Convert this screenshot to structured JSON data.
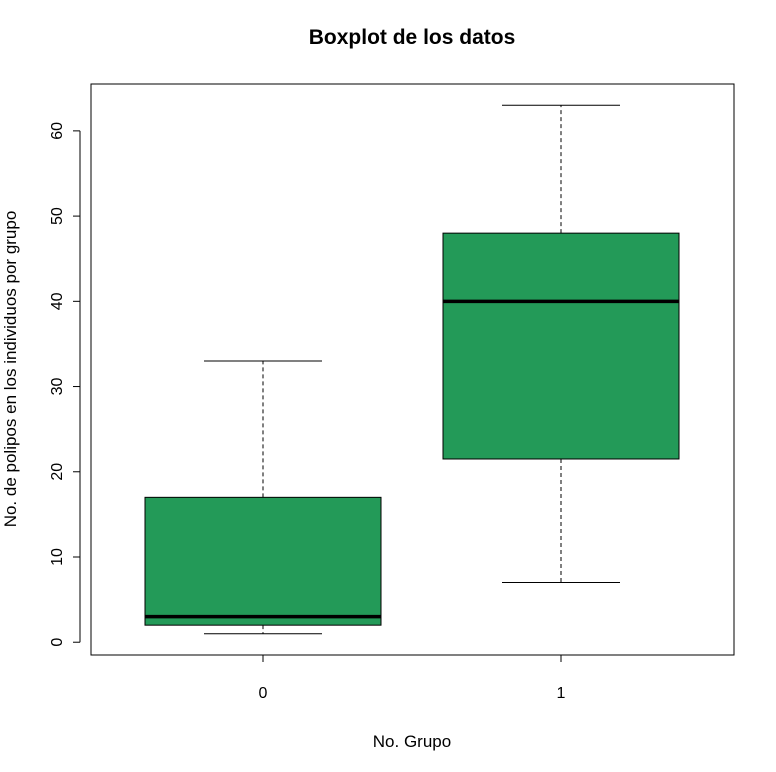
{
  "chart_data": {
    "type": "boxplot",
    "title": "Boxplot de los datos",
    "xlabel": "No. Grupo",
    "ylabel": "No. de polipos en los individuos por grupo",
    "categories": [
      "0",
      "1"
    ],
    "boxes": [
      {
        "category": "0",
        "whisker_low": 1,
        "q1": 2,
        "median": 3,
        "q3": 17,
        "whisker_high": 33
      },
      {
        "category": "1",
        "whisker_low": 7,
        "q1": 21.5,
        "median": 40,
        "q3": 48,
        "whisker_high": 63
      }
    ],
    "yticks": [
      0,
      10,
      20,
      30,
      40,
      50,
      60
    ],
    "ylim": [
      -1.5,
      65.5
    ],
    "box_color": "#239A58",
    "legend": "none",
    "grid": false
  }
}
